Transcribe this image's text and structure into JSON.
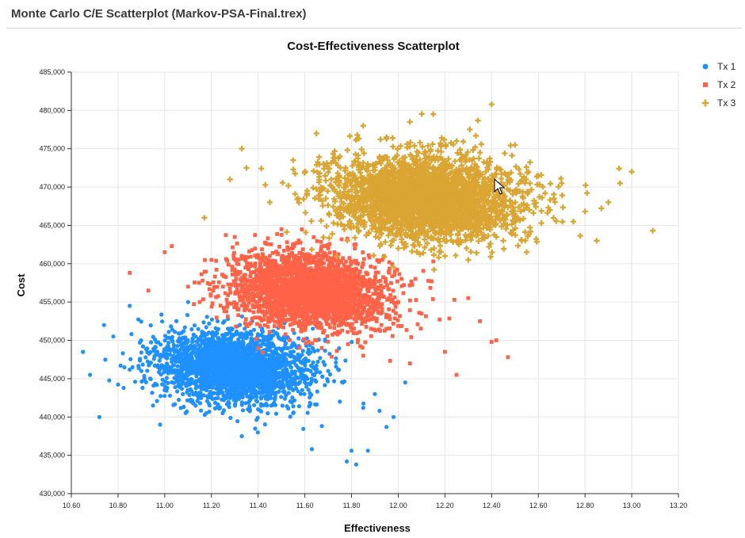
{
  "window": {
    "title": "Monte Carlo C/E Scatterplot (Markov-PSA-Final.trex)"
  },
  "chart_data": {
    "type": "scatter",
    "title": "Cost-Effectiveness Scatterplot",
    "xlabel": "Effectiveness",
    "ylabel": "Cost",
    "xlim": [
      10.6,
      13.2
    ],
    "ylim": [
      430000,
      485000
    ],
    "x_ticks": [
      "10.60",
      "10.80",
      "11.00",
      "11.20",
      "11.40",
      "11.60",
      "11.80",
      "12.00",
      "12.20",
      "12.40",
      "12.60",
      "12.80",
      "13.00",
      "13.20"
    ],
    "y_ticks": [
      "430,000",
      "435,000",
      "440,000",
      "445,000",
      "450,000",
      "455,000",
      "460,000",
      "465,000",
      "470,000",
      "475,000",
      "480,000",
      "485,000"
    ],
    "grid": true,
    "legend_position": "top-right",
    "series": [
      {
        "name": "Tx 1",
        "marker": "circle",
        "color": "#1e90ff",
        "center": [
          11.3,
          446500
        ],
        "spread": [
          0.16,
          2300
        ],
        "sample_points": [
          [
            10.65,
            448500
          ],
          [
            10.68,
            445500
          ],
          [
            10.72,
            440000
          ],
          [
            10.74,
            452000
          ],
          [
            10.78,
            450500
          ],
          [
            10.85,
            454500
          ],
          [
            10.9,
            446000
          ],
          [
            10.95,
            441500
          ],
          [
            10.98,
            439000
          ],
          [
            11.0,
            443500
          ],
          [
            11.05,
            452500
          ],
          [
            11.1,
            455000
          ],
          [
            11.15,
            444000
          ],
          [
            11.2,
            447000
          ],
          [
            11.25,
            449500
          ],
          [
            11.3,
            445000
          ],
          [
            11.33,
            437500
          ],
          [
            11.35,
            451000
          ],
          [
            11.4,
            441000
          ],
          [
            11.45,
            446500
          ],
          [
            11.5,
            448000
          ],
          [
            11.55,
            440500
          ],
          [
            11.6,
            444500
          ],
          [
            11.63,
            435800
          ],
          [
            11.7,
            446000
          ],
          [
            11.75,
            442000
          ],
          [
            11.78,
            434200
          ],
          [
            11.8,
            435600
          ],
          [
            11.82,
            433800
          ],
          [
            11.85,
            441200
          ],
          [
            11.87,
            435600
          ],
          [
            11.9,
            443000
          ],
          [
            11.92,
            440800
          ],
          [
            11.95,
            438700
          ],
          [
            11.98,
            440000
          ],
          [
            12.03,
            444500
          ]
        ],
        "count": 2600
      },
      {
        "name": "Tx 2",
        "marker": "square",
        "color": "#ff6347",
        "center": [
          11.62,
          456500
        ],
        "spread": [
          0.17,
          2400
        ],
        "sample_points": [
          [
            10.85,
            458800
          ],
          [
            10.93,
            456500
          ],
          [
            11.0,
            461500
          ],
          [
            11.03,
            462300
          ],
          [
            11.1,
            457000
          ],
          [
            11.15,
            455000
          ],
          [
            11.2,
            460500
          ],
          [
            11.3,
            463500
          ],
          [
            11.35,
            452000
          ],
          [
            11.4,
            449000
          ],
          [
            11.45,
            461000
          ],
          [
            11.5,
            464500
          ],
          [
            11.55,
            455500
          ],
          [
            11.6,
            458000
          ],
          [
            11.65,
            450000
          ],
          [
            11.7,
            462000
          ],
          [
            11.75,
            453500
          ],
          [
            11.8,
            457500
          ],
          [
            11.85,
            448000
          ],
          [
            11.9,
            459500
          ],
          [
            11.95,
            451500
          ],
          [
            12.0,
            455000
          ],
          [
            12.05,
            447000
          ],
          [
            12.1,
            453500
          ],
          [
            12.15,
            460300
          ],
          [
            12.2,
            448500
          ],
          [
            12.25,
            445500
          ],
          [
            12.3,
            455500
          ],
          [
            12.35,
            452500
          ],
          [
            12.4,
            449800
          ],
          [
            12.42,
            450000
          ],
          [
            12.47,
            447800
          ]
        ],
        "count": 2600
      },
      {
        "name": "Tx 3",
        "marker": "plus",
        "color": "#daa532",
        "center": [
          12.12,
          468500
        ],
        "spread": [
          0.2,
          2700
        ],
        "sample_points": [
          [
            11.17,
            466000
          ],
          [
            11.28,
            471000
          ],
          [
            11.33,
            475000
          ],
          [
            11.35,
            472500
          ],
          [
            11.45,
            468000
          ],
          [
            11.55,
            473500
          ],
          [
            11.65,
            477000
          ],
          [
            11.75,
            474000
          ],
          [
            11.85,
            478000
          ],
          [
            11.9,
            465500
          ],
          [
            11.95,
            476500
          ],
          [
            12.0,
            462000
          ],
          [
            12.05,
            478500
          ],
          [
            12.1,
            464000
          ],
          [
            12.15,
            479500
          ],
          [
            12.2,
            461000
          ],
          [
            12.25,
            476000
          ],
          [
            12.3,
            460500
          ],
          [
            12.35,
            474500
          ],
          [
            12.4,
            480800
          ],
          [
            12.45,
            463000
          ],
          [
            12.5,
            475500
          ],
          [
            12.55,
            461500
          ],
          [
            12.6,
            471500
          ],
          [
            12.65,
            467000
          ],
          [
            12.7,
            470500
          ],
          [
            12.75,
            465500
          ],
          [
            12.8,
            466800
          ],
          [
            12.85,
            463000
          ],
          [
            12.9,
            468000
          ],
          [
            12.95,
            470500
          ],
          [
            13.0,
            472000
          ],
          [
            13.09,
            464300
          ]
        ],
        "count": 3000
      }
    ]
  }
}
